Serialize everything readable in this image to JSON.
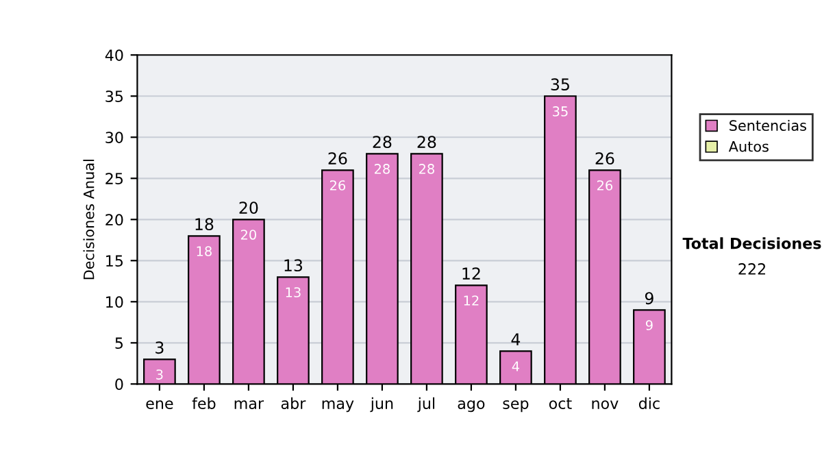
{
  "chart_data": {
    "type": "bar",
    "stacked": true,
    "ylabel": "Decisiones Anual",
    "categories": [
      "ene",
      "feb",
      "mar",
      "abr",
      "may",
      "jun",
      "jul",
      "ago",
      "sep",
      "oct",
      "nov",
      "dic"
    ],
    "series": [
      {
        "name": "Sentencias",
        "color": "#e07fc4",
        "values": [
          3,
          18,
          20,
          13,
          26,
          28,
          28,
          12,
          4,
          35,
          26,
          9
        ],
        "value_labels": [
          "3",
          "18",
          "20",
          "13",
          "26",
          "28",
          "28",
          "12",
          "4",
          "35",
          "26",
          "9"
        ]
      },
      {
        "name": "Autos",
        "color": "#e6f0a8",
        "values": [
          0,
          0,
          0,
          0,
          0,
          0,
          0,
          0,
          0,
          0,
          0,
          0
        ]
      }
    ],
    "totals": [
      "3",
      "18",
      "20",
      "13",
      "26",
      "28",
      "28",
      "12",
      "4",
      "35",
      "26",
      "9"
    ],
    "ylim": [
      0,
      40
    ],
    "yticks": [
      0,
      5,
      10,
      15,
      20,
      25,
      30,
      35,
      40
    ],
    "grid": "y",
    "legend": "right",
    "annotations": [
      "Total Decisiones",
      "222"
    ]
  }
}
